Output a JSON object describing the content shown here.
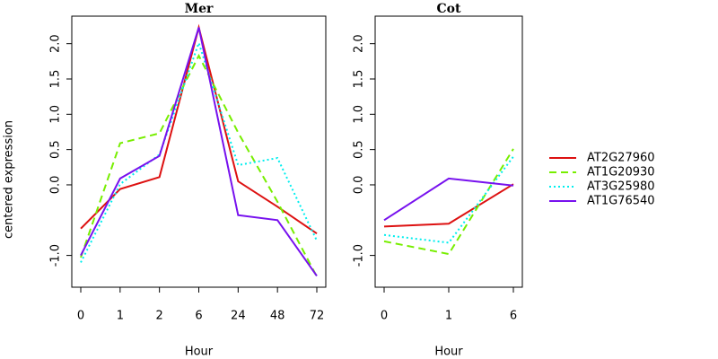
{
  "chart_data": [
    {
      "type": "line",
      "title": "Mer",
      "xlabel": "Hour",
      "ylabel": "centered expression",
      "categories": [
        "0",
        "1",
        "2",
        "6",
        "24",
        "48",
        "72"
      ],
      "ylim": [
        -1.45,
        2.39
      ],
      "yticks": [
        {
          "value": -1,
          "label": "-1.0"
        },
        {
          "value": 0,
          "label": "0.0"
        },
        0.5,
        {
          "value": 1,
          "label": "1.0"
        },
        1.5,
        {
          "value": 2,
          "label": "2.0"
        }
      ],
      "series": [
        {
          "name": "AT2G27960",
          "color": "#dd1111",
          "linestyle": "solid",
          "values": [
            -0.62,
            -0.06,
            0.11,
            2.23,
            0.05,
            -0.31,
            -0.69
          ]
        },
        {
          "name": "AT1G20930",
          "color": "#77ee00",
          "linestyle": "dashed",
          "values": [
            -1.03,
            0.59,
            0.73,
            1.83,
            0.74,
            -0.24,
            -1.3
          ]
        },
        {
          "name": "AT3G25980",
          "color": "#00eeee",
          "linestyle": "dotted",
          "values": [
            -1.1,
            0.01,
            0.43,
            2.01,
            0.28,
            0.38,
            -0.79
          ]
        },
        {
          "name": "AT1G76540",
          "color": "#7711ee",
          "linestyle": "solid",
          "values": [
            -1.0,
            0.09,
            0.41,
            2.23,
            -0.43,
            -0.5,
            -1.29
          ]
        }
      ]
    },
    {
      "type": "line",
      "title": "Cot",
      "xlabel": "Hour",
      "categories": [
        "0",
        "1",
        "6"
      ],
      "ylim": [
        -1.45,
        2.39
      ],
      "yticks": [
        {
          "value": -1,
          "label": "-1.0"
        },
        {
          "value": 0,
          "label": "0.0"
        },
        0.5,
        {
          "value": 1,
          "label": "1.0"
        },
        1.5,
        {
          "value": 2,
          "label": "2.0"
        }
      ],
      "series": [
        {
          "name": "AT2G27960",
          "color": "#dd1111",
          "linestyle": "solid",
          "values": [
            -0.59,
            -0.55,
            0.01
          ]
        },
        {
          "name": "AT1G20930",
          "color": "#77ee00",
          "linestyle": "dashed",
          "values": [
            -0.8,
            -0.98,
            0.51
          ]
        },
        {
          "name": "AT3G25980",
          "color": "#00eeee",
          "linestyle": "dotted",
          "values": [
            -0.71,
            -0.82,
            0.4
          ]
        },
        {
          "name": "AT1G76540",
          "color": "#7711ee",
          "linestyle": "solid",
          "values": [
            -0.5,
            0.09,
            -0.01
          ]
        }
      ]
    }
  ]
}
